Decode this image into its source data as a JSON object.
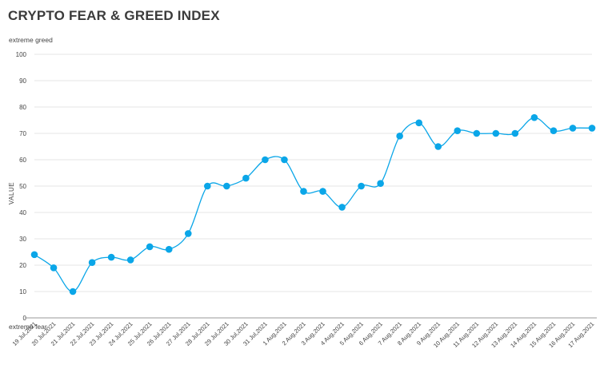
{
  "chart_data": {
    "type": "line",
    "title": "CRYPTO FEAR & GREED INDEX",
    "xlabel": "",
    "ylabel": "VALUE",
    "ylim": [
      0,
      100
    ],
    "yticks": [
      0,
      10,
      20,
      30,
      40,
      50,
      60,
      70,
      80,
      90,
      100
    ],
    "grid": true,
    "annotations": {
      "top": "extreme greed",
      "bottom": "extreme fear"
    },
    "line_color": "#0aa6e8",
    "categories": [
      "19 Jul,2021",
      "20 Jul,2021",
      "21 Jul,2021",
      "22 Jul,2021",
      "23 Jul,2021",
      "24 Jul,2021",
      "25 Jul,2021",
      "26 Jul,2021",
      "27 Jul,2021",
      "28 Jul,2021",
      "29 Jul,2021",
      "30 Jul,2021",
      "31 Jul,2021",
      "1 Aug,2021",
      "2 Aug,2021",
      "3 Aug,2021",
      "4 Aug,2021",
      "5 Aug,2021",
      "6 Aug,2021",
      "7 Aug,2021",
      "8 Aug,2021",
      "9 Aug,2021",
      "10 Aug,2021",
      "11 Aug,2021",
      "12 Aug,2021",
      "13 Aug,2021",
      "14 Aug,2021",
      "15 Aug,2021",
      "16 Aug,2021",
      "17 Aug,2021"
    ],
    "values": [
      24,
      19,
      10,
      21,
      23,
      22,
      27,
      26,
      32,
      50,
      50,
      53,
      60,
      60,
      48,
      48,
      42,
      50,
      51,
      69,
      74,
      65,
      71,
      70,
      70,
      70,
      76,
      71,
      72,
      72
    ]
  }
}
